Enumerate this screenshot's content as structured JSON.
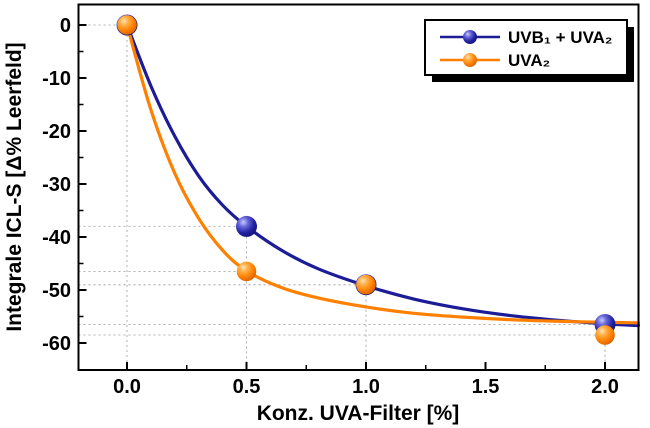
{
  "chart_data": {
    "type": "line",
    "title": "",
    "xlabel": "Konz. UVA-Filter [%]",
    "ylabel": "Integrale ICL-S [Δ% Leerfeld]",
    "xlim": [
      -0.2,
      2.14
    ],
    "ylim": [
      -65.2,
      4
    ],
    "x_ticks": [
      0.0,
      0.5,
      1.0,
      1.5,
      2.0
    ],
    "x_tick_labels": [
      "0.0",
      "0.5",
      "1.0",
      "1.5",
      "2.0"
    ],
    "x_minor_ticks": [
      0.25,
      0.75,
      1.25,
      1.75
    ],
    "y_ticks": [
      0,
      -10,
      -20,
      -30,
      -40,
      -50,
      -60
    ],
    "y_tick_labels": [
      "0",
      "-10",
      "-20",
      "-30",
      "-40",
      "-50",
      "-60"
    ],
    "y_minor_ticks": [
      -5,
      -15,
      -25,
      -35,
      -45,
      -55
    ],
    "grid": "off; dotted gray drop-lines from every data point to both axes",
    "legend_position": "top-right, white box with black border and solid black drop shadow",
    "frame_color": "#000000",
    "dropline_color": "#b3b3b3",
    "background_color": "#ffffff",
    "series": [
      {
        "name": "UVB₁ + UVA₂",
        "color": "#1c1c96",
        "points": [
          [
            0.0,
            0
          ],
          [
            0.5,
            -38
          ],
          [
            1.0,
            -49
          ],
          [
            2.0,
            -56.5
          ]
        ],
        "fit_curve": [
          [
            0,
            0
          ],
          [
            0.1,
            -11.5
          ],
          [
            0.2,
            -21
          ],
          [
            0.3,
            -28.5
          ],
          [
            0.4,
            -34
          ],
          [
            0.5,
            -38
          ],
          [
            0.65,
            -42.6
          ],
          [
            0.8,
            -46
          ],
          [
            1.0,
            -49.2
          ],
          [
            1.2,
            -51.7
          ],
          [
            1.4,
            -53.5
          ],
          [
            1.6,
            -54.8
          ],
          [
            1.8,
            -55.7
          ],
          [
            2.0,
            -56.4
          ],
          [
            2.14,
            -56.7
          ]
        ]
      },
      {
        "name": "UVA₂",
        "color": "#ff8000",
        "points": [
          [
            0.0,
            0
          ],
          [
            0.5,
            -46.5
          ],
          [
            1.0,
            -49
          ],
          [
            2.0,
            -58.5
          ]
        ],
        "fit_curve": [
          [
            0,
            0
          ],
          [
            0.1,
            -16
          ],
          [
            0.2,
            -28
          ],
          [
            0.3,
            -36.5
          ],
          [
            0.4,
            -42.5
          ],
          [
            0.5,
            -46.4
          ],
          [
            0.65,
            -49.6
          ],
          [
            0.8,
            -51.5
          ],
          [
            1.0,
            -53.2
          ],
          [
            1.2,
            -54.4
          ],
          [
            1.4,
            -55.1
          ],
          [
            1.6,
            -55.6
          ],
          [
            1.8,
            -55.9
          ],
          [
            2.0,
            -56.1
          ],
          [
            2.14,
            -56.2
          ]
        ]
      }
    ]
  }
}
